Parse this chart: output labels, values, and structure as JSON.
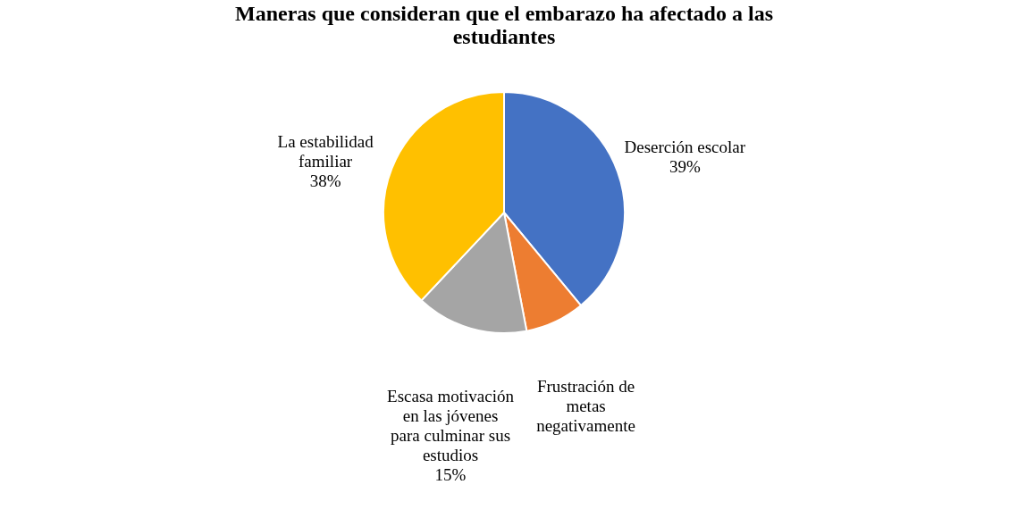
{
  "chart_data": {
    "type": "pie",
    "title": "Maneras que consideran que el embarazo ha afectado a las estudiantes",
    "categories": [
      "Deserción escolar",
      "Frustración de metas negativamente",
      "Escasa motivación en las jóvenes para culminar sus estudios",
      "La estabilidad familiar"
    ],
    "values": [
      39,
      8,
      15,
      38
    ],
    "colors": [
      "#4472c4",
      "#ed7d31",
      "#a5a5a5",
      "#ffc000"
    ],
    "value_labels": [
      "39%",
      null,
      "15%",
      "38%"
    ],
    "legend": false
  }
}
